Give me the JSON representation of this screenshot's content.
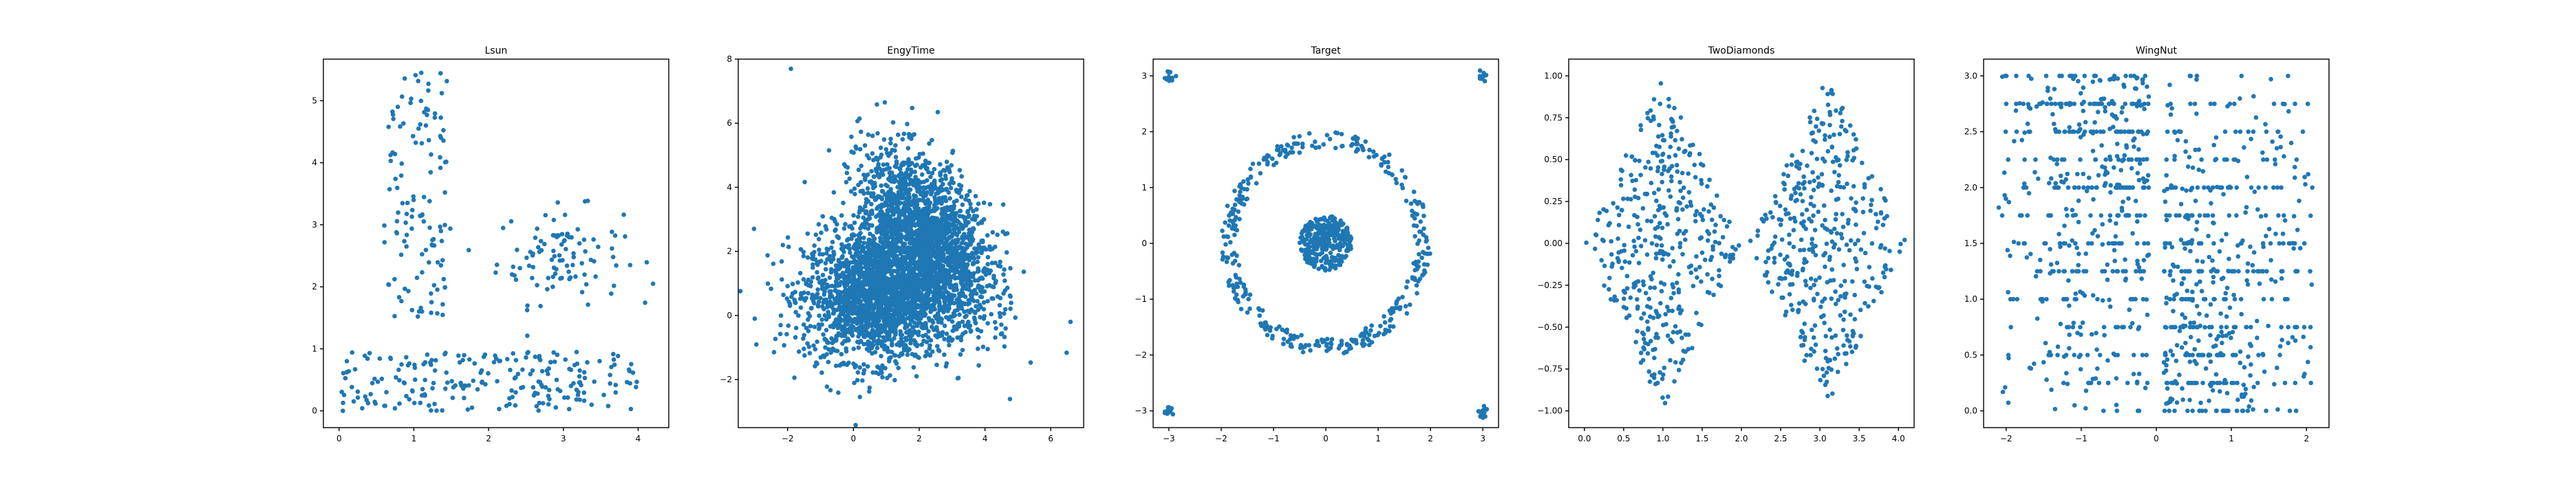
{
  "figure": {
    "background": "#ffffff",
    "marker_color": "#1f77b4"
  },
  "chart_data": [
    {
      "type": "scatter",
      "title": "Lsun",
      "xlim": [
        -0.21,
        4.41
      ],
      "ylim": [
        -0.27,
        5.67
      ],
      "xticks": [
        0,
        1,
        2,
        3,
        4
      ],
      "xtick_labels": [
        "0",
        "1",
        "2",
        "3",
        "4"
      ],
      "yticks": [
        0,
        1,
        2,
        3,
        4,
        5
      ],
      "ytick_labels": [
        "0",
        "1",
        "2",
        "3",
        "4",
        "5"
      ],
      "grid": false,
      "clusters": [
        {
          "shape": "rect",
          "x": [
            0.0,
            4.0
          ],
          "y": [
            0.0,
            0.95
          ],
          "n": 220
        },
        {
          "shape": "rect",
          "x": [
            0.6,
            1.45
          ],
          "y": [
            1.5,
            5.45
          ],
          "n": 120
        },
        {
          "shape": "gauss",
          "center": [
            2.95,
            2.5
          ],
          "sd": [
            0.42,
            0.38
          ],
          "n": 100
        }
      ],
      "extra_points": [
        [
          4.2,
          2.05
        ],
        [
          0.05,
          0.0
        ],
        [
          1.1,
          5.45
        ]
      ]
    },
    {
      "type": "scatter",
      "title": "EngyTime",
      "xlim": [
        -3.5,
        7.0
      ],
      "ylim": [
        -3.5,
        8.0
      ],
      "xticks": [
        -2,
        0,
        2,
        4,
        6
      ],
      "xtick_labels": [
        "−2",
        "0",
        "2",
        "4",
        "6"
      ],
      "yticks": [
        -2,
        0,
        2,
        4,
        6,
        8
      ],
      "ytick_labels": [
        "−2",
        "0",
        "2",
        "4",
        "6",
        "8"
      ],
      "grid": false,
      "clusters": [
        {
          "shape": "gauss",
          "center": [
            0.7,
            0.6
          ],
          "sd": [
            1.1,
            1.0
          ],
          "n": 2000
        },
        {
          "shape": "gauss",
          "center": [
            2.2,
            2.4
          ],
          "sd": [
            1.0,
            1.3
          ],
          "rho": -0.45,
          "n": 2000
        }
      ],
      "extra_points": [
        [
          -1.9,
          7.7
        ],
        [
          6.6,
          -0.2
        ],
        [
          -3.0,
          -0.1
        ]
      ]
    },
    {
      "type": "scatter",
      "title": "Target",
      "xlim": [
        -3.3,
        3.3
      ],
      "ylim": [
        -3.3,
        3.3
      ],
      "xticks": [
        -3,
        -2,
        -1,
        0,
        1,
        2,
        3
      ],
      "xtick_labels": [
        "−3",
        "−2",
        "−1",
        "0",
        "1",
        "2",
        "3"
      ],
      "yticks": [
        -3,
        -2,
        -1,
        0,
        1,
        2,
        3
      ],
      "ytick_labels": [
        "−3",
        "−2",
        "−1",
        "0",
        "1",
        "2",
        "3"
      ],
      "grid": false,
      "clusters": [
        {
          "shape": "disk",
          "center": [
            0,
            0
          ],
          "radius": 0.5,
          "n": 320
        },
        {
          "shape": "ring",
          "center": [
            0,
            0
          ],
          "r": [
            1.7,
            2.0
          ],
          "n": 380
        },
        {
          "shape": "gauss",
          "center": [
            -3.0,
            3.0
          ],
          "sd": [
            0.05,
            0.05
          ],
          "n": 12
        },
        {
          "shape": "gauss",
          "center": [
            3.0,
            3.0
          ],
          "sd": [
            0.05,
            0.05
          ],
          "n": 12
        },
        {
          "shape": "gauss",
          "center": [
            -3.0,
            -3.0
          ],
          "sd": [
            0.05,
            0.05
          ],
          "n": 12
        },
        {
          "shape": "gauss",
          "center": [
            3.0,
            -3.0
          ],
          "sd": [
            0.05,
            0.05
          ],
          "n": 12
        }
      ]
    },
    {
      "type": "scatter",
      "title": "TwoDiamonds",
      "xlim": [
        -0.2,
        4.2
      ],
      "ylim": [
        -1.1,
        1.1
      ],
      "xticks": [
        0.0,
        0.5,
        1.0,
        1.5,
        2.0,
        2.5,
        3.0,
        3.5,
        4.0
      ],
      "xtick_labels": [
        "0.0",
        "0.5",
        "1.0",
        "1.5",
        "2.0",
        "2.5",
        "3.0",
        "3.5",
        "4.0"
      ],
      "yticks": [
        -1.0,
        -0.75,
        -0.5,
        -0.25,
        0.0,
        0.25,
        0.5,
        0.75,
        1.0
      ],
      "ytick_labels": [
        "−1.00",
        "−0.75",
        "−0.50",
        "−0.25",
        "0.00",
        "0.25",
        "0.50",
        "0.75",
        "1.00"
      ],
      "grid": false,
      "clusters": [
        {
          "shape": "diamond",
          "center": [
            1.0,
            0.0
          ],
          "half_width": 1.0,
          "half_height": 1.0,
          "n": 400
        },
        {
          "shape": "diamond",
          "center": [
            3.1,
            0.0
          ],
          "half_width": 1.0,
          "half_height": 1.0,
          "n": 400
        }
      ]
    },
    {
      "type": "scatter",
      "title": "WingNut",
      "xlim": [
        -2.3,
        2.3
      ],
      "ylim": [
        -0.15,
        3.15
      ],
      "xticks": [
        -2,
        -1,
        0,
        1,
        2
      ],
      "xtick_labels": [
        "−2",
        "−1",
        "0",
        "1",
        "2"
      ],
      "yticks": [
        0.0,
        0.5,
        1.0,
        1.5,
        2.0,
        2.5,
        3.0
      ],
      "ytick_labels": [
        "0.0",
        "0.5",
        "1.0",
        "1.5",
        "2.0",
        "2.5",
        "3.0"
      ],
      "grid": false,
      "clusters": [
        {
          "shape": "wing",
          "x": [
            -2.1,
            -0.1
          ],
          "y": [
            0.0,
            3.0
          ],
          "dense": "top-right",
          "y_step": 0.25,
          "n": 520
        },
        {
          "shape": "wing",
          "x": [
            0.1,
            2.1
          ],
          "y": [
            0.0,
            3.0
          ],
          "dense": "bottom-left",
          "y_step": 0.25,
          "n": 520
        }
      ]
    }
  ]
}
